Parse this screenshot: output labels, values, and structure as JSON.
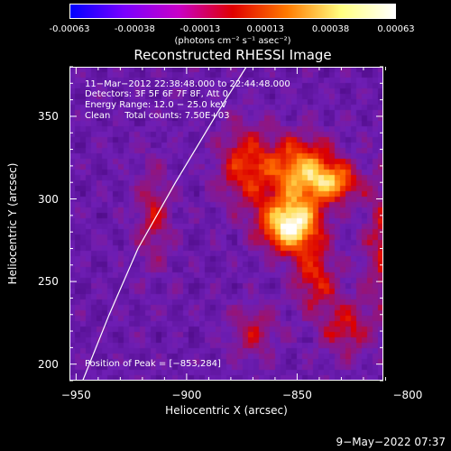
{
  "colorbar": {
    "ticks": [
      "-0.00063",
      "-0.00038",
      "-0.00013",
      "0.00013",
      "0.00038",
      "0.00063"
    ],
    "units": "(photons cm⁻² s⁻¹ asec⁻²)",
    "colors": [
      "#0000ff",
      "#7a00ff",
      "#c800c8",
      "#e00000",
      "#ff7a00",
      "#ffff80",
      "#ffffff"
    ]
  },
  "chart_data": {
    "type": "heatmap",
    "title": "Reconstructed RHESSI Image",
    "xlabel": "Heliocentric X (arcsec)",
    "ylabel": "Heliocentric Y (arcsec)",
    "xlim": [
      -953,
      -811
    ],
    "ylim": [
      190,
      380
    ],
    "xticks": [
      -950,
      -900,
      -850,
      -800
    ],
    "yticks": [
      200,
      250,
      300,
      350
    ],
    "xtick_labels": [
      "−950",
      "−900",
      "−850",
      "−800"
    ],
    "ytick_labels": [
      "200",
      "250",
      "300",
      "350"
    ],
    "peak": [
      -853,
      284
    ],
    "limb_curve": [
      [
        -947,
        190
      ],
      [
        -935,
        230
      ],
      [
        -922,
        270
      ],
      [
        -905,
        310
      ],
      [
        -887,
        350
      ],
      [
        -873,
        380
      ]
    ],
    "sources": [
      {
        "x": -853,
        "y": 284,
        "amp": 1.0,
        "sx": 9,
        "sy": 11
      },
      {
        "x": -848,
        "y": 317,
        "amp": 0.7,
        "sx": 10,
        "sy": 14
      },
      {
        "x": -833,
        "y": 310,
        "amp": 0.55,
        "sx": 8,
        "sy": 8
      },
      {
        "x": -873,
        "y": 320,
        "amp": 0.45,
        "sx": 9,
        "sy": 18
      },
      {
        "x": -842,
        "y": 252,
        "amp": 0.4,
        "sx": 7,
        "sy": 14
      },
      {
        "x": -810,
        "y": 272,
        "amp": 0.35,
        "sx": 7,
        "sy": 30
      },
      {
        "x": -828,
        "y": 222,
        "amp": 0.35,
        "sx": 8,
        "sy": 12
      },
      {
        "x": -915,
        "y": 290,
        "amp": 0.3,
        "sx": 6,
        "sy": 22
      },
      {
        "x": -870,
        "y": 220,
        "amp": 0.28,
        "sx": 8,
        "sy": 12
      }
    ],
    "annotations": {
      "line1": "11−Mar−2012 22:38:48.000 to 22:44:48.000",
      "line2": "Detectors: 3F 5F 6F 7F 8F, Att 0",
      "line3": "Energy Range: 12.0 − 25.0 keV",
      "line4": "Clean     Total counts: 7.50E+03",
      "peak_text": "Position of Peak = [−853,284]"
    }
  },
  "timestamp": "9−May−2022 07:37"
}
